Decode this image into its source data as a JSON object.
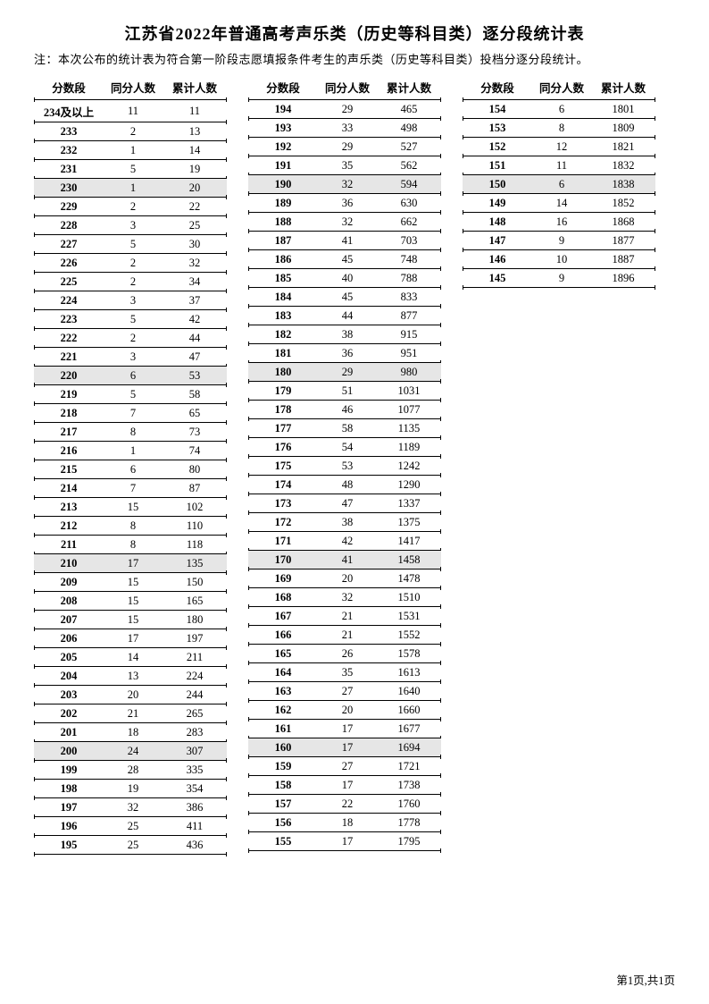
{
  "title": "江苏省2022年普通高考声乐类（历史等科目类）逐分段统计表",
  "note": "注：本次公布的统计表为符合第一阶段志愿填报条件考生的声乐类（历史等科目类）投档分逐分段统计。",
  "headers": {
    "score": "分数段",
    "count": "同分人数",
    "cum": "累计人数"
  },
  "footer": "第1页,共1页",
  "highlight_bg": "#e6e6e6",
  "columns": [
    {
      "rows": [
        {
          "score": "234及以上",
          "c": "11",
          "t": "11",
          "hl": false
        },
        {
          "score": "233",
          "c": "2",
          "t": "13",
          "hl": false
        },
        {
          "score": "232",
          "c": "1",
          "t": "14",
          "hl": false
        },
        {
          "score": "231",
          "c": "5",
          "t": "19",
          "hl": false
        },
        {
          "score": "230",
          "c": "1",
          "t": "20",
          "hl": true
        },
        {
          "score": "229",
          "c": "2",
          "t": "22",
          "hl": false
        },
        {
          "score": "228",
          "c": "3",
          "t": "25",
          "hl": false
        },
        {
          "score": "227",
          "c": "5",
          "t": "30",
          "hl": false
        },
        {
          "score": "226",
          "c": "2",
          "t": "32",
          "hl": false
        },
        {
          "score": "225",
          "c": "2",
          "t": "34",
          "hl": false
        },
        {
          "score": "224",
          "c": "3",
          "t": "37",
          "hl": false
        },
        {
          "score": "223",
          "c": "5",
          "t": "42",
          "hl": false
        },
        {
          "score": "222",
          "c": "2",
          "t": "44",
          "hl": false
        },
        {
          "score": "221",
          "c": "3",
          "t": "47",
          "hl": false
        },
        {
          "score": "220",
          "c": "6",
          "t": "53",
          "hl": true
        },
        {
          "score": "219",
          "c": "5",
          "t": "58",
          "hl": false
        },
        {
          "score": "218",
          "c": "7",
          "t": "65",
          "hl": false
        },
        {
          "score": "217",
          "c": "8",
          "t": "73",
          "hl": false
        },
        {
          "score": "216",
          "c": "1",
          "t": "74",
          "hl": false
        },
        {
          "score": "215",
          "c": "6",
          "t": "80",
          "hl": false
        },
        {
          "score": "214",
          "c": "7",
          "t": "87",
          "hl": false
        },
        {
          "score": "213",
          "c": "15",
          "t": "102",
          "hl": false
        },
        {
          "score": "212",
          "c": "8",
          "t": "110",
          "hl": false
        },
        {
          "score": "211",
          "c": "8",
          "t": "118",
          "hl": false
        },
        {
          "score": "210",
          "c": "17",
          "t": "135",
          "hl": true
        },
        {
          "score": "209",
          "c": "15",
          "t": "150",
          "hl": false
        },
        {
          "score": "208",
          "c": "15",
          "t": "165",
          "hl": false
        },
        {
          "score": "207",
          "c": "15",
          "t": "180",
          "hl": false
        },
        {
          "score": "206",
          "c": "17",
          "t": "197",
          "hl": false
        },
        {
          "score": "205",
          "c": "14",
          "t": "211",
          "hl": false
        },
        {
          "score": "204",
          "c": "13",
          "t": "224",
          "hl": false
        },
        {
          "score": "203",
          "c": "20",
          "t": "244",
          "hl": false
        },
        {
          "score": "202",
          "c": "21",
          "t": "265",
          "hl": false
        },
        {
          "score": "201",
          "c": "18",
          "t": "283",
          "hl": false
        },
        {
          "score": "200",
          "c": "24",
          "t": "307",
          "hl": true
        },
        {
          "score": "199",
          "c": "28",
          "t": "335",
          "hl": false
        },
        {
          "score": "198",
          "c": "19",
          "t": "354",
          "hl": false
        },
        {
          "score": "197",
          "c": "32",
          "t": "386",
          "hl": false
        },
        {
          "score": "196",
          "c": "25",
          "t": "411",
          "hl": false
        },
        {
          "score": "195",
          "c": "25",
          "t": "436",
          "hl": false
        }
      ]
    },
    {
      "rows": [
        {
          "score": "194",
          "c": "29",
          "t": "465",
          "hl": false
        },
        {
          "score": "193",
          "c": "33",
          "t": "498",
          "hl": false
        },
        {
          "score": "192",
          "c": "29",
          "t": "527",
          "hl": false
        },
        {
          "score": "191",
          "c": "35",
          "t": "562",
          "hl": false
        },
        {
          "score": "190",
          "c": "32",
          "t": "594",
          "hl": true
        },
        {
          "score": "189",
          "c": "36",
          "t": "630",
          "hl": false
        },
        {
          "score": "188",
          "c": "32",
          "t": "662",
          "hl": false
        },
        {
          "score": "187",
          "c": "41",
          "t": "703",
          "hl": false
        },
        {
          "score": "186",
          "c": "45",
          "t": "748",
          "hl": false
        },
        {
          "score": "185",
          "c": "40",
          "t": "788",
          "hl": false
        },
        {
          "score": "184",
          "c": "45",
          "t": "833",
          "hl": false
        },
        {
          "score": "183",
          "c": "44",
          "t": "877",
          "hl": false
        },
        {
          "score": "182",
          "c": "38",
          "t": "915",
          "hl": false
        },
        {
          "score": "181",
          "c": "36",
          "t": "951",
          "hl": false
        },
        {
          "score": "180",
          "c": "29",
          "t": "980",
          "hl": true
        },
        {
          "score": "179",
          "c": "51",
          "t": "1031",
          "hl": false
        },
        {
          "score": "178",
          "c": "46",
          "t": "1077",
          "hl": false
        },
        {
          "score": "177",
          "c": "58",
          "t": "1135",
          "hl": false
        },
        {
          "score": "176",
          "c": "54",
          "t": "1189",
          "hl": false
        },
        {
          "score": "175",
          "c": "53",
          "t": "1242",
          "hl": false
        },
        {
          "score": "174",
          "c": "48",
          "t": "1290",
          "hl": false
        },
        {
          "score": "173",
          "c": "47",
          "t": "1337",
          "hl": false
        },
        {
          "score": "172",
          "c": "38",
          "t": "1375",
          "hl": false
        },
        {
          "score": "171",
          "c": "42",
          "t": "1417",
          "hl": false
        },
        {
          "score": "170",
          "c": "41",
          "t": "1458",
          "hl": true
        },
        {
          "score": "169",
          "c": "20",
          "t": "1478",
          "hl": false
        },
        {
          "score": "168",
          "c": "32",
          "t": "1510",
          "hl": false
        },
        {
          "score": "167",
          "c": "21",
          "t": "1531",
          "hl": false
        },
        {
          "score": "166",
          "c": "21",
          "t": "1552",
          "hl": false
        },
        {
          "score": "165",
          "c": "26",
          "t": "1578",
          "hl": false
        },
        {
          "score": "164",
          "c": "35",
          "t": "1613",
          "hl": false
        },
        {
          "score": "163",
          "c": "27",
          "t": "1640",
          "hl": false
        },
        {
          "score": "162",
          "c": "20",
          "t": "1660",
          "hl": false
        },
        {
          "score": "161",
          "c": "17",
          "t": "1677",
          "hl": false
        },
        {
          "score": "160",
          "c": "17",
          "t": "1694",
          "hl": true
        },
        {
          "score": "159",
          "c": "27",
          "t": "1721",
          "hl": false
        },
        {
          "score": "158",
          "c": "17",
          "t": "1738",
          "hl": false
        },
        {
          "score": "157",
          "c": "22",
          "t": "1760",
          "hl": false
        },
        {
          "score": "156",
          "c": "18",
          "t": "1778",
          "hl": false
        },
        {
          "score": "155",
          "c": "17",
          "t": "1795",
          "hl": false
        }
      ]
    },
    {
      "rows": [
        {
          "score": "154",
          "c": "6",
          "t": "1801",
          "hl": false
        },
        {
          "score": "153",
          "c": "8",
          "t": "1809",
          "hl": false
        },
        {
          "score": "152",
          "c": "12",
          "t": "1821",
          "hl": false
        },
        {
          "score": "151",
          "c": "11",
          "t": "1832",
          "hl": false
        },
        {
          "score": "150",
          "c": "6",
          "t": "1838",
          "hl": true
        },
        {
          "score": "149",
          "c": "14",
          "t": "1852",
          "hl": false
        },
        {
          "score": "148",
          "c": "16",
          "t": "1868",
          "hl": false
        },
        {
          "score": "147",
          "c": "9",
          "t": "1877",
          "hl": false
        },
        {
          "score": "146",
          "c": "10",
          "t": "1887",
          "hl": false
        },
        {
          "score": "145",
          "c": "9",
          "t": "1896",
          "hl": false
        }
      ]
    }
  ]
}
